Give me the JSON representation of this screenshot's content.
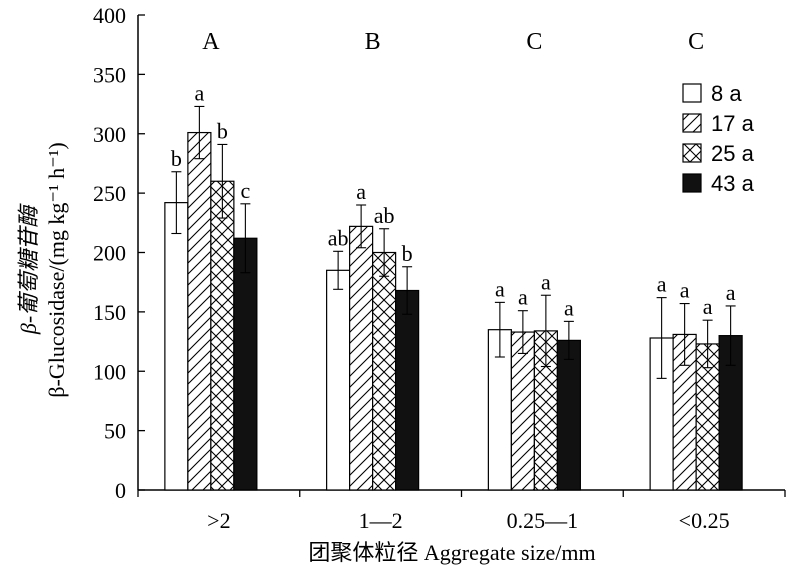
{
  "chart_data": {
    "type": "bar",
    "categories": [
      ">2",
      "1—2",
      "0.25—1",
      "<0.25"
    ],
    "series": [
      {
        "name": "8 a",
        "values": [
          242,
          185,
          135,
          128
        ],
        "errors": [
          26,
          16,
          23,
          34
        ],
        "pattern": "open"
      },
      {
        "name": "17 a",
        "values": [
          301,
          222,
          133,
          131
        ],
        "errors": [
          22,
          18,
          18,
          26
        ],
        "pattern": "diagonal"
      },
      {
        "name": "25 a",
        "values": [
          260,
          200,
          134,
          123
        ],
        "errors": [
          31,
          20,
          30,
          20
        ],
        "pattern": "crosshatch"
      },
      {
        "name": "43 a",
        "values": [
          212,
          168,
          126,
          130
        ],
        "errors": [
          29,
          20,
          16,
          25
        ],
        "pattern": "solid"
      }
    ],
    "significance": [
      [
        "b",
        "a",
        "b",
        "c"
      ],
      [
        "ab",
        "a",
        "ab",
        "b"
      ],
      [
        "a",
        "a",
        "a",
        "a"
      ],
      [
        "a",
        "a",
        "a",
        "a"
      ]
    ],
    "group_letters": [
      "A",
      "B",
      "C",
      "C"
    ],
    "ylim": [
      0,
      400
    ],
    "yticks": [
      0,
      50,
      100,
      150,
      200,
      250,
      300,
      350,
      400
    ],
    "xlabel": "团聚体粒径 Aggregate size/mm",
    "ylabel_cn": "β-葡萄糖苷酶",
    "ylabel_en": "β-Glucosidase/(mg kg⁻¹ h⁻¹)",
    "legend_position": "top-right",
    "grid": false
  }
}
